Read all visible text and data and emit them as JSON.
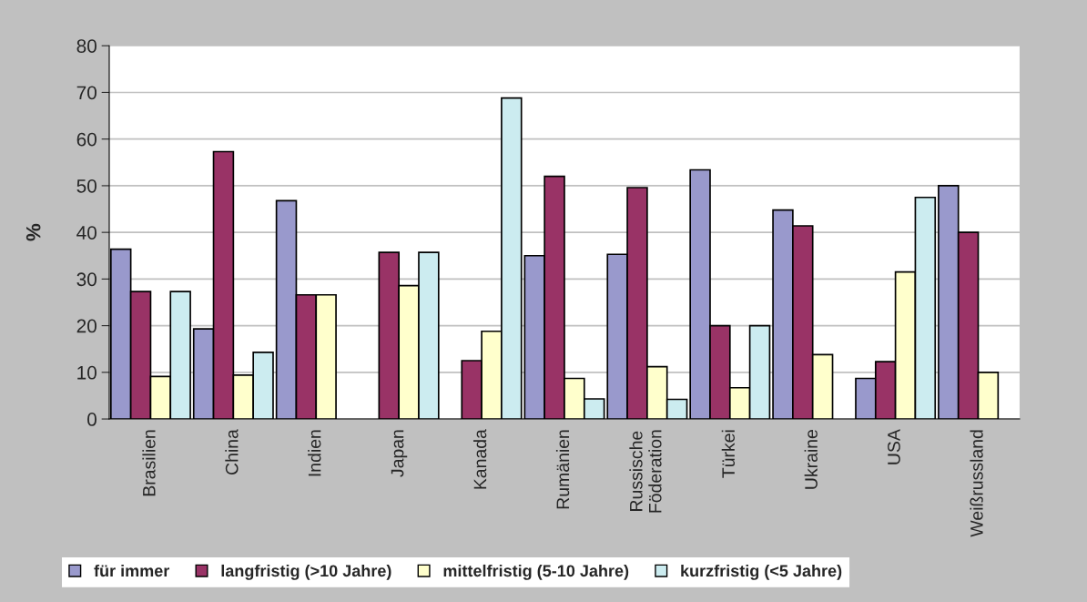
{
  "chart_data": {
    "type": "bar",
    "ylabel": "%",
    "categories": [
      "Brasilien",
      "China",
      "Indien",
      "Japan",
      "Kanada",
      "Rumänien",
      "Russische\nFöderation",
      "Türkei",
      "Ukraine",
      "USA",
      "Weißrussland"
    ],
    "series": [
      {
        "name": "für immer",
        "color": "#9999cc",
        "values": [
          36.4,
          19.3,
          46.8,
          null,
          null,
          35.0,
          35.3,
          53.4,
          44.8,
          8.7,
          50.0
        ]
      },
      {
        "name": "langfristig (>10 Jahre)",
        "color": "#993366",
        "values": [
          27.3,
          57.3,
          26.6,
          35.7,
          12.5,
          52.0,
          49.6,
          20.0,
          41.4,
          12.3,
          40.0
        ]
      },
      {
        "name": "mittelfristig (5-10 Jahre)",
        "color": "#ffffcc",
        "values": [
          9.1,
          9.4,
          26.6,
          28.6,
          18.8,
          8.7,
          11.2,
          6.7,
          13.8,
          31.5,
          10.0
        ]
      },
      {
        "name": "kurzfristig (<5 Jahre)",
        "color": "#ccecf0",
        "values": [
          27.3,
          14.3,
          null,
          35.7,
          68.8,
          4.3,
          4.2,
          20.0,
          null,
          47.5,
          null
        ]
      }
    ],
    "ylim": [
      0,
      80
    ],
    "yticks": [
      0,
      10,
      20,
      30,
      40,
      50,
      60,
      70,
      80
    ],
    "grid": "y",
    "legend": "bottom"
  }
}
